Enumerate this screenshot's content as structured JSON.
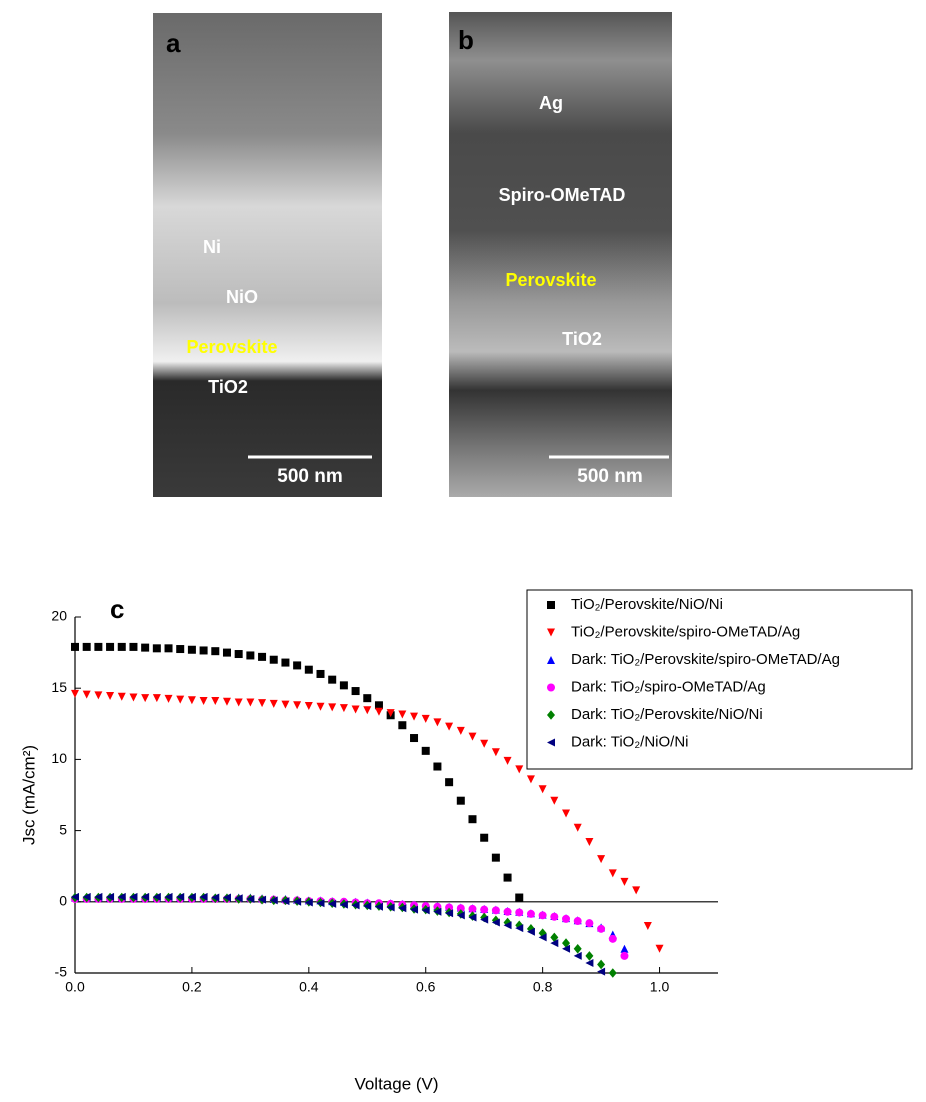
{
  "panels": [
    {
      "label": "a",
      "annotations": [
        "Ni",
        "NiO",
        "Perovskite",
        "TiO2"
      ],
      "scale_bar": "500 nm"
    },
    {
      "label": "b",
      "annotations": [
        "Ag",
        "Spiro-OMeTAD",
        "Perovskite",
        "TiO2"
      ],
      "scale_bar": "500 nm"
    }
  ],
  "chart_data": {
    "type": "scatter",
    "title": "c",
    "x_label": "Voltage (V)",
    "y_label": "Jsc (mA/cm²)",
    "xlim": [
      0,
      1.1
    ],
    "ylim": [
      -5,
      20
    ],
    "xticks": [
      {
        "value": 0,
        "label": "0.0"
      },
      0.2,
      0.4,
      0.6,
      0.8,
      {
        "value": 1,
        "label": "1.0"
      }
    ],
    "yticks": [
      -5,
      0,
      5,
      10,
      15,
      20
    ],
    "legend": "upper right",
    "x": [
      0,
      0.02,
      0.04,
      0.06,
      0.08,
      0.1,
      0.12,
      0.14,
      0.16,
      0.18,
      0.2,
      0.22,
      0.24,
      0.26,
      0.28,
      0.3,
      0.32,
      0.34,
      0.36,
      0.38,
      0.4,
      0.42,
      0.44,
      0.46,
      0.48,
      0.5,
      0.52,
      0.54,
      0.56,
      0.58,
      0.6,
      0.62,
      0.64,
      0.66,
      0.68,
      0.7,
      0.72,
      0.74,
      0.76,
      0.78,
      0.8,
      0.82,
      0.84,
      0.86,
      0.88,
      0.9,
      0.92,
      0.94,
      0.96,
      0.98,
      1.0
    ],
    "series": [
      {
        "name": "TiO₂/Perovskite/NiO/Ni",
        "color": "#000000",
        "marker": "square",
        "values": [
          17.9,
          17.9,
          17.9,
          17.9,
          17.9,
          17.9,
          17.85,
          17.8,
          17.8,
          17.75,
          17.7,
          17.65,
          17.6,
          17.5,
          17.4,
          17.3,
          17.2,
          17.0,
          16.8,
          16.6,
          16.3,
          16.0,
          15.6,
          15.2,
          14.8,
          14.3,
          13.8,
          13.1,
          12.4,
          11.5,
          10.6,
          9.5,
          8.4,
          7.1,
          5.8,
          4.5,
          3.1,
          1.7,
          0.3,
          null,
          null,
          null,
          null,
          null,
          null,
          null,
          null,
          null,
          null,
          null,
          null
        ]
      },
      {
        "name": "TiO₂/Perovskite/spiro-OMeTAD/Ag",
        "color": "#ff0000",
        "marker": "triangle-down",
        "values": [
          14.6,
          14.55,
          14.5,
          14.45,
          14.4,
          14.35,
          14.3,
          14.3,
          14.25,
          14.2,
          14.15,
          14.1,
          14.1,
          14.05,
          14.0,
          14.0,
          13.95,
          13.9,
          13.85,
          13.8,
          13.75,
          13.7,
          13.65,
          13.6,
          13.5,
          13.45,
          13.35,
          13.25,
          13.15,
          13.0,
          12.85,
          12.6,
          12.3,
          12.0,
          11.6,
          11.1,
          10.5,
          9.9,
          9.3,
          8.6,
          7.9,
          7.1,
          6.2,
          5.2,
          4.2,
          3.0,
          2.0,
          1.4,
          0.8,
          -1.7,
          -3.3
        ]
      },
      {
        "name": "Dark: TiO₂/Perovskite/spiro-OMeTAD/Ag",
        "color": "#0000ff",
        "marker": "triangle-up",
        "values": [
          0.3,
          0.3,
          0.3,
          0.3,
          0.3,
          0.3,
          0.3,
          0.3,
          0.3,
          0.3,
          0.3,
          0.3,
          0.3,
          0.3,
          0.3,
          0.3,
          0.25,
          0.2,
          0.2,
          0.15,
          0.1,
          0.1,
          0.05,
          0,
          0,
          -0.05,
          -0.1,
          -0.1,
          -0.15,
          -0.2,
          -0.25,
          -0.3,
          -0.35,
          -0.4,
          -0.45,
          -0.5,
          -0.55,
          -0.65,
          -0.7,
          -0.8,
          -0.9,
          -1.0,
          -1.15,
          -1.3,
          -1.5,
          -1.8,
          -2.3,
          -3.3,
          null,
          null,
          null
        ]
      },
      {
        "name": "Dark: TiO₂/spiro-OMeTAD/Ag",
        "color": "#ff00ff",
        "marker": "circle",
        "values": [
          0.2,
          0.2,
          0.2,
          0.2,
          0.2,
          0.2,
          0.2,
          0.2,
          0.2,
          0.2,
          0.2,
          0.2,
          0.2,
          0.2,
          0.2,
          0.2,
          0.15,
          0.15,
          0.1,
          0.1,
          0.05,
          0.05,
          0,
          0,
          -0.05,
          -0.1,
          -0.1,
          -0.15,
          -0.2,
          -0.25,
          -0.3,
          -0.35,
          -0.4,
          -0.45,
          -0.5,
          -0.55,
          -0.6,
          -0.7,
          -0.75,
          -0.85,
          -0.95,
          -1.05,
          -1.2,
          -1.35,
          -1.5,
          -1.9,
          -2.6,
          -3.8,
          null,
          null,
          null
        ]
      },
      {
        "name": "Dark: TiO₂/Perovskite/NiO/Ni",
        "color": "#008000",
        "marker": "diamond",
        "values": [
          0.3,
          0.3,
          0.3,
          0.3,
          0.3,
          0.3,
          0.3,
          0.3,
          0.3,
          0.3,
          0.3,
          0.3,
          0.25,
          0.25,
          0.2,
          0.2,
          0.15,
          0.1,
          0.1,
          0.05,
          0,
          -0.05,
          -0.1,
          -0.15,
          -0.2,
          -0.25,
          -0.3,
          -0.35,
          -0.4,
          -0.5,
          -0.55,
          -0.65,
          -0.75,
          -0.85,
          -1.0,
          -1.1,
          -1.3,
          -1.45,
          -1.65,
          -1.9,
          -2.2,
          -2.5,
          -2.9,
          -3.3,
          -3.8,
          -4.4,
          -5.0,
          null,
          null,
          null,
          null
        ]
      },
      {
        "name": "Dark: TiO₂/NiO/Ni",
        "color": "#000080",
        "marker": "triangle-left",
        "values": [
          0.35,
          0.35,
          0.35,
          0.35,
          0.35,
          0.35,
          0.35,
          0.35,
          0.35,
          0.35,
          0.35,
          0.35,
          0.3,
          0.3,
          0.25,
          0.2,
          0.15,
          0.1,
          0.05,
          0,
          -0.05,
          -0.1,
          -0.15,
          -0.2,
          -0.25,
          -0.3,
          -0.35,
          -0.4,
          -0.45,
          -0.55,
          -0.6,
          -0.7,
          -0.8,
          -0.95,
          -1.1,
          -1.25,
          -1.45,
          -1.65,
          -1.85,
          -2.1,
          -2.5,
          -2.9,
          -3.3,
          -3.8,
          -4.3,
          -4.9,
          null,
          null,
          null,
          null,
          null
        ]
      }
    ]
  }
}
